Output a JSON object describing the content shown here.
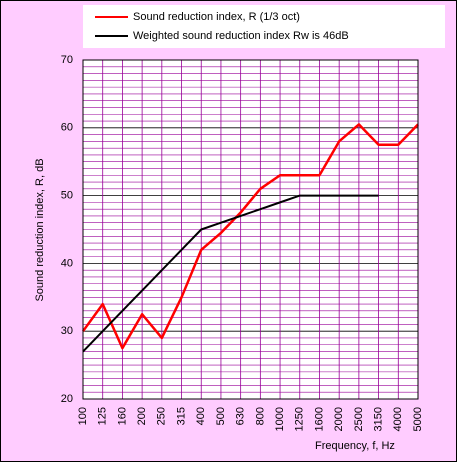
{
  "chart_data": {
    "type": "line",
    "xlabel": "Frequency, f, Hz",
    "ylabel": "Sound reduction index, R, dB",
    "categories": [
      "100",
      "125",
      "160",
      "200",
      "250",
      "315",
      "400",
      "500",
      "630",
      "800",
      "1000",
      "1250",
      "1600",
      "2000",
      "2500",
      "3150",
      "4000",
      "5000"
    ],
    "series": [
      {
        "name": "Sound reduction index, R (1/3 oct)",
        "color": "#ff0000",
        "values": [
          30,
          34,
          27.5,
          32.5,
          29,
          35,
          42,
          44.5,
          47.5,
          51,
          53,
          53,
          53,
          58,
          60.5,
          57.5,
          57.5,
          60.5
        ]
      },
      {
        "name": "Weighted sound reduction index Rw is 46dB",
        "color": "#000000",
        "values": [
          27,
          30,
          33,
          36,
          39,
          42,
          45,
          46,
          47,
          48,
          49,
          50,
          50,
          50,
          50,
          50,
          null,
          null
        ]
      }
    ],
    "ylim": [
      20,
      70
    ],
    "yticks": [
      20,
      30,
      40,
      50,
      60,
      70
    ],
    "grid": true,
    "background": "#ffccff",
    "grid_color": "#990099"
  }
}
